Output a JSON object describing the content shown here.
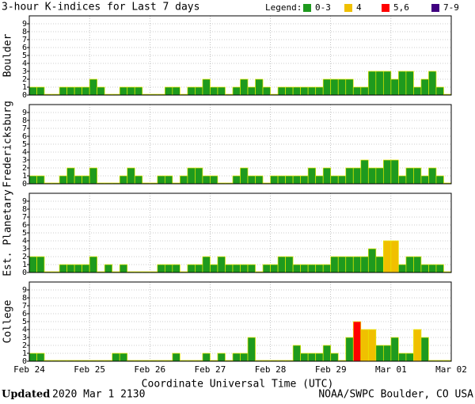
{
  "title": "3-hour K-indices for Last 7 days",
  "legend": {
    "label": "Legend:",
    "items": [
      {
        "label": "0-3",
        "color": "#1e9a1e"
      },
      {
        "label": "4",
        "color": "#f0c000"
      },
      {
        "label": "5,6",
        "color": "#ff0000"
      },
      {
        "label": "7-9",
        "color": "#400080"
      }
    ]
  },
  "x_axis": {
    "labels": [
      "Feb 24",
      "Feb 25",
      "Feb 26",
      "Feb 27",
      "Feb 28",
      "Feb 29",
      "Mar 01",
      "Mar 02"
    ],
    "title": "Coordinate Universal Time (UTC)"
  },
  "footer": {
    "updated": "Updated",
    "timestamp": "2020 Mar  1 2130",
    "credit": "NOAA/SWPC Boulder, CO USA"
  },
  "chart_data": [
    {
      "type": "bar",
      "ylabel": "Boulder",
      "ylim": [
        0,
        10
      ],
      "yticks": [
        0,
        1,
        2,
        3,
        4,
        5,
        6,
        7,
        8,
        9
      ],
      "grid": true,
      "values": [
        1,
        1,
        0,
        0,
        1,
        1,
        1,
        1,
        2,
        1,
        0,
        0,
        1,
        1,
        1,
        0,
        0,
        0,
        1,
        1,
        0,
        1,
        1,
        2,
        1,
        1,
        0,
        1,
        2,
        1,
        2,
        1,
        0,
        1,
        1,
        1,
        1,
        1,
        1,
        2,
        2,
        2,
        2,
        1,
        1,
        3,
        3,
        3,
        2,
        3,
        3,
        1,
        2,
        3,
        1,
        0
      ],
      "colors": [
        "#1e9a1e",
        "#1e9a1e",
        "#1e9a1e",
        "#1e9a1e",
        "#1e9a1e",
        "#1e9a1e",
        "#1e9a1e",
        "#1e9a1e",
        "#1e9a1e",
        "#1e9a1e",
        "#1e9a1e",
        "#1e9a1e",
        "#1e9a1e",
        "#1e9a1e",
        "#1e9a1e",
        "#1e9a1e",
        "#1e9a1e",
        "#1e9a1e",
        "#1e9a1e",
        "#1e9a1e",
        "#1e9a1e",
        "#1e9a1e",
        "#1e9a1e",
        "#1e9a1e",
        "#1e9a1e",
        "#1e9a1e",
        "#1e9a1e",
        "#1e9a1e",
        "#1e9a1e",
        "#1e9a1e",
        "#1e9a1e",
        "#1e9a1e",
        "#1e9a1e",
        "#1e9a1e",
        "#1e9a1e",
        "#1e9a1e",
        "#1e9a1e",
        "#1e9a1e",
        "#1e9a1e",
        "#1e9a1e",
        "#1e9a1e",
        "#1e9a1e",
        "#1e9a1e",
        "#1e9a1e",
        "#1e9a1e",
        "#1e9a1e",
        "#1e9a1e",
        "#1e9a1e",
        "#1e9a1e",
        "#1e9a1e",
        "#1e9a1e",
        "#1e9a1e",
        "#1e9a1e",
        "#1e9a1e",
        "#1e9a1e",
        "#1e9a1e"
      ]
    },
    {
      "type": "bar",
      "ylabel": "Fredericksburg",
      "ylim": [
        0,
        10
      ],
      "yticks": [
        0,
        1,
        2,
        3,
        4,
        5,
        6,
        7,
        8,
        9
      ],
      "grid": true,
      "values": [
        1,
        1,
        0,
        0,
        1,
        2,
        1,
        1,
        2,
        0,
        0,
        0,
        1,
        2,
        1,
        0,
        0,
        1,
        1,
        0,
        1,
        2,
        2,
        1,
        1,
        0,
        0,
        1,
        2,
        1,
        1,
        0,
        1,
        1,
        1,
        1,
        1,
        2,
        1,
        2,
        1,
        1,
        2,
        2,
        3,
        2,
        2,
        3,
        3,
        1,
        2,
        2,
        1,
        2,
        1,
        0
      ],
      "colors": [
        "#1e9a1e",
        "#1e9a1e",
        "#1e9a1e",
        "#1e9a1e",
        "#1e9a1e",
        "#1e9a1e",
        "#1e9a1e",
        "#1e9a1e",
        "#1e9a1e",
        "#1e9a1e",
        "#1e9a1e",
        "#1e9a1e",
        "#1e9a1e",
        "#1e9a1e",
        "#1e9a1e",
        "#1e9a1e",
        "#1e9a1e",
        "#1e9a1e",
        "#1e9a1e",
        "#1e9a1e",
        "#1e9a1e",
        "#1e9a1e",
        "#1e9a1e",
        "#1e9a1e",
        "#1e9a1e",
        "#1e9a1e",
        "#1e9a1e",
        "#1e9a1e",
        "#1e9a1e",
        "#1e9a1e",
        "#1e9a1e",
        "#1e9a1e",
        "#1e9a1e",
        "#1e9a1e",
        "#1e9a1e",
        "#1e9a1e",
        "#1e9a1e",
        "#1e9a1e",
        "#1e9a1e",
        "#1e9a1e",
        "#1e9a1e",
        "#1e9a1e",
        "#1e9a1e",
        "#1e9a1e",
        "#1e9a1e",
        "#1e9a1e",
        "#1e9a1e",
        "#1e9a1e",
        "#1e9a1e",
        "#1e9a1e",
        "#1e9a1e",
        "#1e9a1e",
        "#1e9a1e",
        "#1e9a1e",
        "#1e9a1e",
        "#1e9a1e"
      ]
    },
    {
      "type": "bar",
      "ylabel": "Est. Planetary",
      "ylim": [
        0,
        10
      ],
      "yticks": [
        0,
        1,
        2,
        3,
        4,
        5,
        6,
        7,
        8,
        9
      ],
      "grid": true,
      "values": [
        2,
        2,
        0,
        0,
        1,
        1,
        1,
        1,
        2,
        0,
        1,
        0,
        1,
        0,
        0,
        0,
        0,
        1,
        1,
        1,
        0,
        1,
        1,
        2,
        1,
        2,
        1,
        1,
        1,
        1,
        0,
        1,
        1,
        2,
        2,
        1,
        1,
        1,
        1,
        1,
        2,
        2,
        2,
        2,
        2,
        3,
        2,
        4,
        4,
        1,
        2,
        2,
        1,
        1,
        1,
        0
      ],
      "colors": [
        "#1e9a1e",
        "#1e9a1e",
        "#1e9a1e",
        "#1e9a1e",
        "#1e9a1e",
        "#1e9a1e",
        "#1e9a1e",
        "#1e9a1e",
        "#1e9a1e",
        "#1e9a1e",
        "#1e9a1e",
        "#1e9a1e",
        "#1e9a1e",
        "#1e9a1e",
        "#1e9a1e",
        "#1e9a1e",
        "#1e9a1e",
        "#1e9a1e",
        "#1e9a1e",
        "#1e9a1e",
        "#1e9a1e",
        "#1e9a1e",
        "#1e9a1e",
        "#1e9a1e",
        "#1e9a1e",
        "#1e9a1e",
        "#1e9a1e",
        "#1e9a1e",
        "#1e9a1e",
        "#1e9a1e",
        "#1e9a1e",
        "#1e9a1e",
        "#1e9a1e",
        "#1e9a1e",
        "#1e9a1e",
        "#1e9a1e",
        "#1e9a1e",
        "#1e9a1e",
        "#1e9a1e",
        "#1e9a1e",
        "#1e9a1e",
        "#1e9a1e",
        "#1e9a1e",
        "#1e9a1e",
        "#1e9a1e",
        "#1e9a1e",
        "#1e9a1e",
        "#f0c000",
        "#f0c000",
        "#1e9a1e",
        "#1e9a1e",
        "#1e9a1e",
        "#1e9a1e",
        "#1e9a1e",
        "#1e9a1e",
        "#1e9a1e"
      ]
    },
    {
      "type": "bar",
      "ylabel": "College",
      "ylim": [
        0,
        10
      ],
      "yticks": [
        0,
        1,
        2,
        3,
        4,
        5,
        6,
        7,
        8,
        9
      ],
      "grid": true,
      "values": [
        1,
        1,
        0,
        0,
        0,
        0,
        0,
        0,
        0,
        0,
        0,
        1,
        1,
        0,
        0,
        0,
        0,
        0,
        0,
        1,
        0,
        0,
        0,
        1,
        0,
        1,
        0,
        1,
        1,
        3,
        0,
        0,
        0,
        0,
        0,
        2,
        1,
        1,
        1,
        2,
        1,
        0,
        3,
        5,
        4,
        4,
        2,
        2,
        3,
        1,
        1,
        4,
        3,
        0,
        0,
        0
      ],
      "colors": [
        "#1e9a1e",
        "#1e9a1e",
        "#1e9a1e",
        "#1e9a1e",
        "#1e9a1e",
        "#1e9a1e",
        "#1e9a1e",
        "#1e9a1e",
        "#1e9a1e",
        "#1e9a1e",
        "#1e9a1e",
        "#1e9a1e",
        "#1e9a1e",
        "#1e9a1e",
        "#1e9a1e",
        "#1e9a1e",
        "#1e9a1e",
        "#1e9a1e",
        "#1e9a1e",
        "#1e9a1e",
        "#1e9a1e",
        "#1e9a1e",
        "#1e9a1e",
        "#1e9a1e",
        "#1e9a1e",
        "#1e9a1e",
        "#1e9a1e",
        "#1e9a1e",
        "#1e9a1e",
        "#1e9a1e",
        "#1e9a1e",
        "#1e9a1e",
        "#1e9a1e",
        "#1e9a1e",
        "#1e9a1e",
        "#1e9a1e",
        "#1e9a1e",
        "#1e9a1e",
        "#1e9a1e",
        "#1e9a1e",
        "#1e9a1e",
        "#1e9a1e",
        "#1e9a1e",
        "#ff0000",
        "#f0c000",
        "#f0c000",
        "#1e9a1e",
        "#1e9a1e",
        "#1e9a1e",
        "#1e9a1e",
        "#1e9a1e",
        "#f0c000",
        "#1e9a1e",
        "#1e9a1e",
        "#1e9a1e",
        "#1e9a1e"
      ]
    }
  ]
}
